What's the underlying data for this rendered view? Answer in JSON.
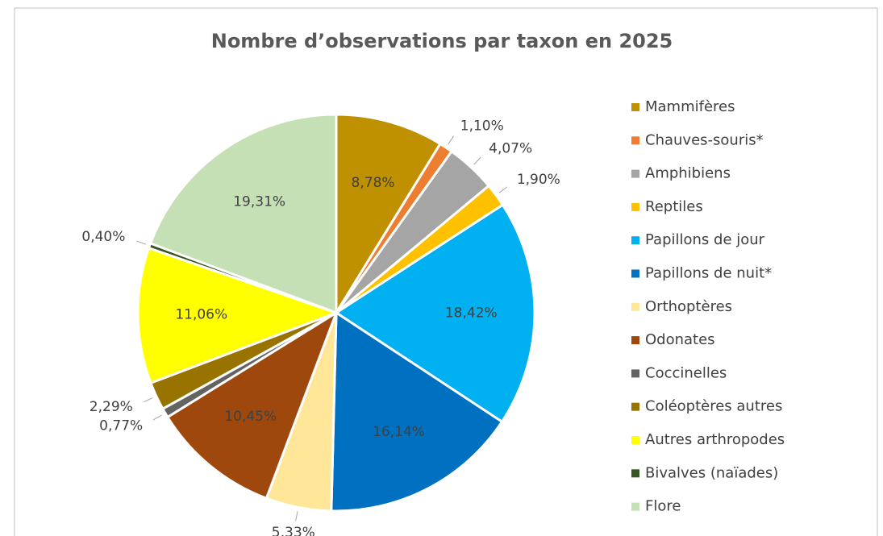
{
  "chart_data": {
    "type": "pie",
    "title": "Nombre d’observations par taxon en 2025",
    "categories": [
      "Mammifères",
      "Chauves-souris*",
      "Amphibiens",
      "Reptiles",
      "Papillons de jour",
      "Papillons de nuit*",
      "Orthoptères",
      "Odonates",
      "Coccinelles",
      "Coléoptères autres",
      "Autres arthropodes",
      "Bivalves (naïades)",
      "Flore"
    ],
    "values": [
      8.78,
      1.1,
      4.07,
      1.9,
      18.42,
      16.14,
      5.33,
      10.45,
      0.77,
      2.29,
      11.06,
      0.4,
      19.31
    ],
    "value_labels": [
      "8,78%",
      "1,10%",
      "4,07%",
      "1,90%",
      "18,42%",
      "16,14%",
      "5,33%",
      "10,45%",
      "0,77%",
      "2,29%",
      "11,06%",
      "0,40%",
      "19,31%"
    ],
    "colors": [
      "#bf9000",
      "#ed7d31",
      "#a5a5a5",
      "#ffc000",
      "#00b0f0",
      "#0070c0",
      "#ffe699",
      "#9e480e",
      "#636363",
      "#997300",
      "#ffff00",
      "#375623",
      "#c5e0b4"
    ],
    "legend": "right"
  }
}
